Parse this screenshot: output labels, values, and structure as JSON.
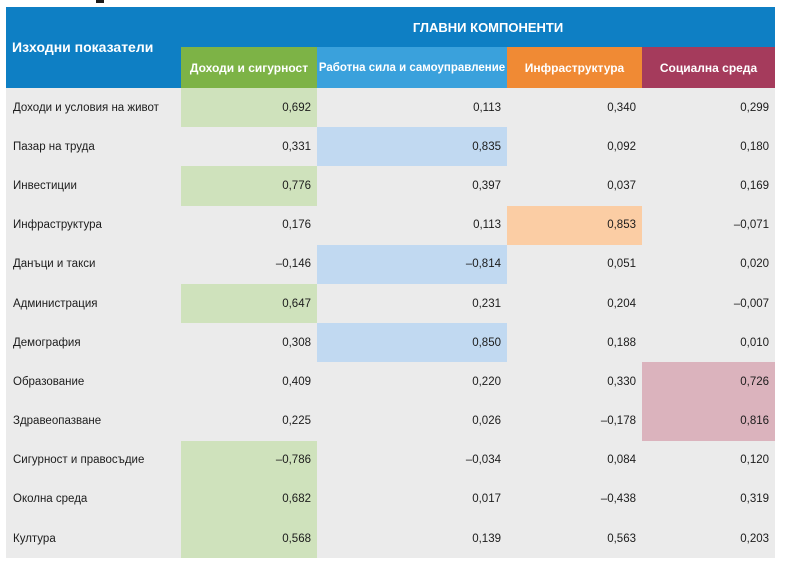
{
  "table": {
    "source_header": "Изходни показатели",
    "group_header": "ГЛАВНИ КОМПОНЕНТИ",
    "components": [
      "Доходи и сигурност",
      "Работна сила и самоуправление",
      "Инфраструктура",
      "Социална среда"
    ],
    "component_colors": [
      "#7db346",
      "#3aa1dc",
      "#f08a34",
      "#a53b5c"
    ],
    "highlight_colors": [
      "#cfe2bc",
      "#c1d9f1",
      "#fbcda4",
      "#dbb3bd"
    ],
    "rows": [
      {
        "label": "Доходи и условия на живот",
        "values": [
          "0,692",
          "0,113",
          "0,340",
          "0,299"
        ],
        "highlight": 0
      },
      {
        "label": "Пазар на труда",
        "values": [
          "0,331",
          "0,835",
          "0,092",
          "0,180"
        ],
        "highlight": 1
      },
      {
        "label": "Инвестиции",
        "values": [
          "0,776",
          "0,397",
          "0,037",
          "0,169"
        ],
        "highlight": 0
      },
      {
        "label": "Инфраструктура",
        "values": [
          "0,176",
          "0,113",
          "0,853",
          "–0,071"
        ],
        "highlight": 2
      },
      {
        "label": "Данъци и такси",
        "values": [
          "–0,146",
          "–0,814",
          "0,051",
          "0,020"
        ],
        "highlight": 1
      },
      {
        "label": "Администрация",
        "values": [
          "0,647",
          "0,231",
          "0,204",
          "–0,007"
        ],
        "highlight": 0
      },
      {
        "label": "Демография",
        "values": [
          "0,308",
          "0,850",
          "0,188",
          "0,010"
        ],
        "highlight": 1
      },
      {
        "label": "Образование",
        "values": [
          "0,409",
          "0,220",
          "0,330",
          "0,726"
        ],
        "highlight": 3
      },
      {
        "label": "Здравеопазване",
        "values": [
          "0,225",
          "0,026",
          "–0,178",
          "0,816"
        ],
        "highlight": 3
      },
      {
        "label": "Сигурност и правосъдие",
        "values": [
          "–0,786",
          "–0,034",
          "0,084",
          "0,120"
        ],
        "highlight": 0
      },
      {
        "label": "Околна среда",
        "values": [
          "0,682",
          "0,017",
          "–0,438",
          "0,319"
        ],
        "highlight": 0
      },
      {
        "label": "Култура",
        "values": [
          "0,568",
          "0,139",
          "0,563",
          "0,203"
        ],
        "highlight": 0
      }
    ]
  }
}
